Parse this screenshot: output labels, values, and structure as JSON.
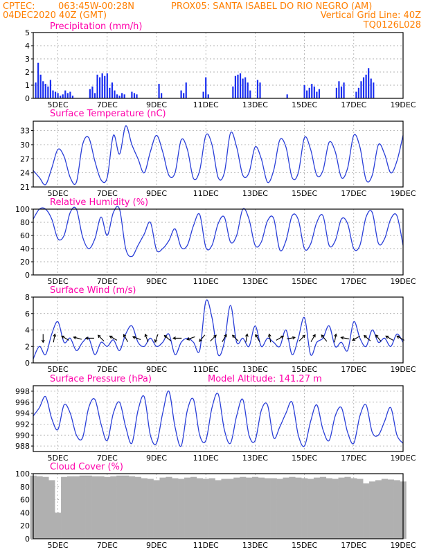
{
  "header": {
    "line1_left": "CPTEC:",
    "line1_coords": "063:45W-00:28N",
    "line1_station": "PROX05: SANTA ISABEL DO RIO NEGRO (AM)",
    "line2_left": "04DEC2020 40Z (GMT)",
    "line2_right": "Vertical Grid Line: 40Z",
    "line3_right": "TQ0126L028"
  },
  "x_axis": {
    "start_day": 4,
    "end_day": 19,
    "tick_days": [
      5,
      7,
      9,
      11,
      13,
      15,
      17,
      19
    ],
    "tick_labels": [
      "5DEC",
      "7DEC",
      "9DEC",
      "11DEC",
      "13DEC",
      "15DEC",
      "17DEC",
      "19DEC"
    ]
  },
  "colors": {
    "header": "#ff7f00",
    "panel_title": "#ff00aa",
    "series": "#2a3fd8",
    "precip_bar": "#1a2ef0",
    "cloud": "#b0b0b0",
    "grid": "#9a9a9a"
  },
  "chart_data": [
    {
      "type": "bar",
      "title": "Precipitation (mm/h)",
      "ylim": [
        0,
        5
      ],
      "yticks": [
        0,
        1,
        2,
        3,
        4,
        5
      ],
      "grid": true,
      "x": [
        4.1,
        4.2,
        4.3,
        4.4,
        4.5,
        4.6,
        4.7,
        4.8,
        4.9,
        5.0,
        5.1,
        5.2,
        5.3,
        5.4,
        5.5,
        5.6,
        6.3,
        6.4,
        6.5,
        6.6,
        6.7,
        6.8,
        6.9,
        7.0,
        7.1,
        7.2,
        7.3,
        7.4,
        7.5,
        7.6,
        7.7,
        8.0,
        8.1,
        8.2,
        9.1,
        9.2,
        10.0,
        10.1,
        10.2,
        10.9,
        11.0,
        11.1,
        12.1,
        12.2,
        12.3,
        12.4,
        12.5,
        12.6,
        12.7,
        12.8,
        13.1,
        13.2,
        14.3,
        15.0,
        15.1,
        15.2,
        15.3,
        15.4,
        15.5,
        15.6,
        16.3,
        16.4,
        16.5,
        16.6,
        17.1,
        17.2,
        17.3,
        17.4,
        17.5,
        17.6,
        17.7,
        17.8
      ],
      "values": [
        1.2,
        2.7,
        1.8,
        1.3,
        1.1,
        0.9,
        1.4,
        0.6,
        0.5,
        0.4,
        0.2,
        0.3,
        0.6,
        0.4,
        0.5,
        0.2,
        0.7,
        0.9,
        0.4,
        1.8,
        1.6,
        1.9,
        1.7,
        1.9,
        0.8,
        1.2,
        0.6,
        0.3,
        0.2,
        0.4,
        0.3,
        0.5,
        0.4,
        0.3,
        1.1,
        0.4,
        0.6,
        0.4,
        1.2,
        0.5,
        1.6,
        0.3,
        0.9,
        1.7,
        1.8,
        1.9,
        1.5,
        1.6,
        1.2,
        0.6,
        1.4,
        1.2,
        0.3,
        1.0,
        0.6,
        0.8,
        1.1,
        0.9,
        0.5,
        0.7,
        0.8,
        1.3,
        0.9,
        1.2,
        0.5,
        0.8,
        1.3,
        1.6,
        1.8,
        2.3,
        1.5,
        1.2
      ]
    },
    {
      "type": "line",
      "title": "Surface Temperature (nC)",
      "ylim": [
        21,
        35
      ],
      "yticks": [
        21,
        24,
        27,
        30,
        33
      ],
      "grid": true,
      "x": [
        4.0,
        4.25,
        4.5,
        4.75,
        5.0,
        5.25,
        5.5,
        5.75,
        6.0,
        6.25,
        6.5,
        6.75,
        7.0,
        7.25,
        7.5,
        7.75,
        8.0,
        8.25,
        8.5,
        8.75,
        9.0,
        9.25,
        9.5,
        9.75,
        10.0,
        10.25,
        10.5,
        10.75,
        11.0,
        11.25,
        11.5,
        11.75,
        12.0,
        12.25,
        12.5,
        12.75,
        13.0,
        13.25,
        13.5,
        13.75,
        14.0,
        14.25,
        14.5,
        14.75,
        15.0,
        15.25,
        15.5,
        15.75,
        16.0,
        16.25,
        16.5,
        16.75,
        17.0,
        17.25,
        17.5,
        17.75,
        18.0,
        18.25,
        18.5,
        18.75,
        19.0
      ],
      "values": [
        24.5,
        23.0,
        21.5,
        25.0,
        29.0,
        27.5,
        23.0,
        22.0,
        30.0,
        31.5,
        26.5,
        22.5,
        23.0,
        32.0,
        28.0,
        34.0,
        30.0,
        27.0,
        24.0,
        28.5,
        32.0,
        28.5,
        23.5,
        24.0,
        31.0,
        29.0,
        22.8,
        24.5,
        32.0,
        30.0,
        23.0,
        24.0,
        32.5,
        29.5,
        23.5,
        24.0,
        29.5,
        27.0,
        22.0,
        24.5,
        31.0,
        29.5,
        23.0,
        24.0,
        31.5,
        29.0,
        23.5,
        24.5,
        30.5,
        28.5,
        23.0,
        25.0,
        32.0,
        29.5,
        22.5,
        23.5,
        30.0,
        28.0,
        24.0,
        26.5,
        32.0
      ]
    },
    {
      "type": "line",
      "title": "Relative Humidity (%)",
      "ylim": [
        0,
        100
      ],
      "yticks": [
        0,
        20,
        40,
        60,
        80,
        100
      ],
      "grid": true,
      "x": [
        4.0,
        4.25,
        4.5,
        4.75,
        5.0,
        5.25,
        5.5,
        5.75,
        6.0,
        6.25,
        6.5,
        6.75,
        7.0,
        7.25,
        7.5,
        7.75,
        8.0,
        8.25,
        8.5,
        8.75,
        9.0,
        9.25,
        9.5,
        9.75,
        10.0,
        10.25,
        10.5,
        10.75,
        11.0,
        11.25,
        11.5,
        11.75,
        12.0,
        12.25,
        12.5,
        12.75,
        13.0,
        13.25,
        13.5,
        13.75,
        14.0,
        14.25,
        14.5,
        14.75,
        15.0,
        15.25,
        15.5,
        15.75,
        16.0,
        16.25,
        16.5,
        16.75,
        17.0,
        17.25,
        17.5,
        17.75,
        18.0,
        18.25,
        18.5,
        18.75,
        19.0
      ],
      "values": [
        85,
        100,
        100,
        85,
        55,
        60,
        95,
        100,
        58,
        40,
        55,
        88,
        60,
        95,
        100,
        40,
        28,
        45,
        62,
        80,
        38,
        40,
        52,
        70,
        42,
        45,
        75,
        92,
        42,
        45,
        78,
        88,
        50,
        60,
        100,
        85,
        45,
        50,
        82,
        86,
        38,
        52,
        90,
        84,
        40,
        47,
        80,
        90,
        45,
        52,
        85,
        78,
        40,
        45,
        88,
        95,
        48,
        55,
        85,
        90,
        45
      ]
    },
    {
      "type": "line",
      "title": "Surface Wind (m/s)",
      "ylim": [
        0,
        8
      ],
      "yticks": [
        0,
        2,
        4,
        6,
        8
      ],
      "grid": true,
      "x": [
        4.0,
        4.25,
        4.5,
        4.75,
        5.0,
        5.25,
        5.5,
        5.75,
        6.0,
        6.25,
        6.5,
        6.75,
        7.0,
        7.25,
        7.5,
        7.75,
        8.0,
        8.25,
        8.5,
        8.75,
        9.0,
        9.25,
        9.5,
        9.75,
        10.0,
        10.25,
        10.5,
        10.75,
        11.0,
        11.25,
        11.5,
        11.75,
        12.0,
        12.25,
        12.5,
        12.75,
        13.0,
        13.25,
        13.5,
        13.75,
        14.0,
        14.25,
        14.5,
        14.75,
        15.0,
        15.25,
        15.5,
        15.75,
        16.0,
        16.25,
        16.5,
        16.75,
        17.0,
        17.25,
        17.5,
        17.75,
        18.0,
        18.25,
        18.5,
        18.75,
        19.0
      ],
      "values": [
        0.5,
        2.0,
        1.0,
        3.5,
        5.0,
        2.5,
        3.0,
        1.5,
        2.5,
        3.0,
        1.0,
        2.5,
        2.0,
        2.8,
        1.5,
        3.5,
        4.5,
        2.5,
        2.0,
        3.0,
        2.0,
        2.5,
        3.5,
        1.0,
        2.5,
        3.0,
        2.5,
        1.5,
        7.5,
        5.5,
        1.0,
        2.5,
        7.0,
        2.5,
        3.0,
        2.0,
        4.5,
        2.0,
        3.0,
        2.5,
        2.0,
        4.0,
        1.0,
        3.0,
        5.5,
        1.0,
        2.5,
        3.0,
        4.5,
        2.0,
        2.5,
        1.5,
        5.0,
        3.0,
        2.0,
        4.0,
        2.5,
        3.0,
        2.0,
        3.5,
        2.5
      ],
      "arrows_x": [
        4.4,
        4.85,
        5.3,
        5.8,
        6.3,
        6.75,
        7.25,
        7.75,
        8.2,
        8.6,
        9.0,
        9.45,
        9.85,
        10.4,
        10.85,
        11.3,
        11.75,
        12.2,
        12.65,
        13.1,
        13.6,
        14.0,
        14.45,
        14.9,
        15.35,
        15.8,
        16.25,
        16.65,
        17.1,
        17.55,
        18.0,
        18.45,
        18.9
      ],
      "arrows_dir_deg": [
        270,
        80,
        150,
        165,
        180,
        135,
        150,
        120,
        160,
        110,
        250,
        140,
        180,
        200,
        230,
        45,
        60,
        135,
        80,
        120,
        100,
        30,
        10,
        45,
        60,
        130,
        80,
        170,
        210,
        140,
        130,
        150,
        150
      ]
    },
    {
      "type": "line",
      "title": "Surface Pressure (hPa)",
      "annotation": "Model Altitude: 141.27 m",
      "ylim": [
        987,
        999
      ],
      "yticks": [
        988,
        990,
        992,
        994,
        996,
        998
      ],
      "grid": true,
      "x": [
        4.0,
        4.25,
        4.5,
        4.75,
        5.0,
        5.25,
        5.5,
        5.75,
        6.0,
        6.25,
        6.5,
        6.75,
        7.0,
        7.25,
        7.5,
        7.75,
        8.0,
        8.25,
        8.5,
        8.75,
        9.0,
        9.25,
        9.5,
        9.75,
        10.0,
        10.25,
        10.5,
        10.75,
        11.0,
        11.25,
        11.5,
        11.75,
        12.0,
        12.25,
        12.5,
        12.75,
        13.0,
        13.25,
        13.5,
        13.75,
        14.0,
        14.25,
        14.5,
        14.75,
        15.0,
        15.25,
        15.5,
        15.75,
        16.0,
        16.25,
        16.5,
        16.75,
        17.0,
        17.25,
        17.5,
        17.75,
        18.0,
        18.25,
        18.5,
        18.75,
        19.0
      ],
      "values": [
        993.5,
        995.0,
        997.0,
        993.0,
        991.0,
        995.5,
        994.0,
        990.0,
        989.5,
        995.0,
        996.5,
        992.0,
        989.0,
        994.0,
        996.0,
        991.5,
        988.5,
        994.5,
        997.0,
        990.0,
        988.5,
        994.0,
        998.0,
        991.5,
        988.0,
        994.5,
        996.5,
        990.0,
        989.0,
        995.0,
        997.5,
        991.0,
        988.5,
        993.5,
        996.5,
        990.0,
        989.0,
        994.5,
        995.5,
        989.5,
        991.5,
        994.0,
        996.0,
        990.0,
        988.0,
        992.5,
        995.5,
        991.0,
        989.0,
        993.5,
        995.0,
        990.5,
        988.5,
        993.5,
        995.5,
        990.5,
        990.0,
        992.5,
        995.0,
        990.0,
        988.5
      ]
    },
    {
      "type": "bar",
      "title": "Cloud Cover (%)",
      "ylim": [
        0,
        100
      ],
      "yticks": [
        0,
        20,
        40,
        60,
        80,
        100
      ],
      "grid": true,
      "x": [
        4.0,
        4.25,
        4.5,
        4.75,
        5.0,
        5.25,
        5.5,
        5.75,
        6.0,
        6.25,
        6.5,
        6.75,
        7.0,
        7.25,
        7.5,
        7.75,
        8.0,
        8.25,
        8.5,
        8.75,
        9.0,
        9.25,
        9.5,
        9.75,
        10.0,
        10.25,
        10.5,
        10.75,
        11.0,
        11.25,
        11.5,
        11.75,
        12.0,
        12.25,
        12.5,
        12.75,
        13.0,
        13.25,
        13.5,
        13.75,
        14.0,
        14.25,
        14.5,
        14.75,
        15.0,
        15.25,
        15.5,
        15.75,
        16.0,
        16.25,
        16.5,
        16.75,
        17.0,
        17.25,
        17.5,
        17.75,
        18.0,
        18.25,
        18.5,
        18.75,
        19.0
      ],
      "values": [
        97,
        96,
        95,
        90,
        40,
        95,
        96,
        96,
        97,
        97,
        96,
        96,
        95,
        96,
        97,
        97,
        96,
        95,
        93,
        92,
        90,
        94,
        95,
        93,
        92,
        94,
        95,
        93,
        92,
        93,
        90,
        92,
        92,
        94,
        95,
        94,
        95,
        94,
        93,
        93,
        92,
        94,
        95,
        94,
        93,
        92,
        94,
        95,
        93,
        92,
        94,
        95,
        93,
        92,
        85,
        88,
        90,
        92,
        91,
        90,
        88
      ]
    }
  ]
}
